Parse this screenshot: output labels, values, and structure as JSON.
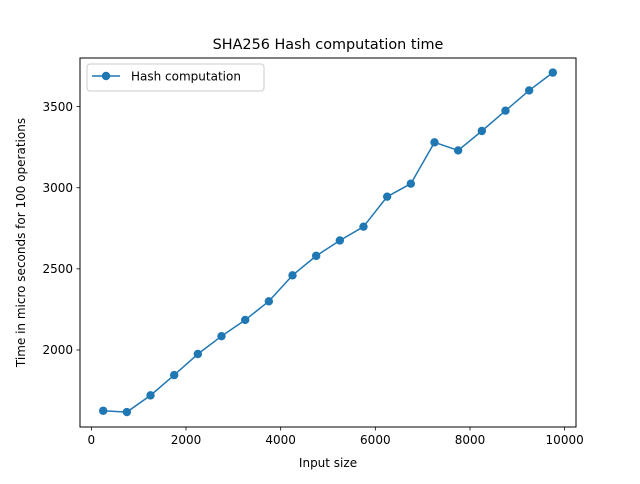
{
  "chart_data": {
    "type": "line",
    "title": "SHA256 Hash computation time",
    "xlabel": "Input size",
    "ylabel": "Time in micro seconds for 100 operations",
    "xlim": [
      -240,
      10240
    ],
    "ylim": [
      1525,
      3800
    ],
    "x_ticks": [
      0,
      2000,
      4000,
      6000,
      8000,
      10000
    ],
    "y_ticks": [
      2000,
      2500,
      3000,
      3500
    ],
    "grid": false,
    "legend_position": "upper left",
    "series": [
      {
        "name": "Hash computation",
        "color": "#1f77b4",
        "marker": "circle",
        "x": [
          250,
          750,
          1250,
          1750,
          2250,
          2750,
          3250,
          3750,
          4250,
          4750,
          5250,
          5750,
          6250,
          6750,
          7250,
          7750,
          8250,
          8750,
          9250,
          9750
        ],
        "y": [
          1625,
          1617,
          1720,
          1845,
          1975,
          2085,
          2185,
          2300,
          2460,
          2580,
          2675,
          2760,
          2945,
          3025,
          3280,
          3230,
          3350,
          3475,
          3600,
          3710
        ]
      }
    ]
  }
}
